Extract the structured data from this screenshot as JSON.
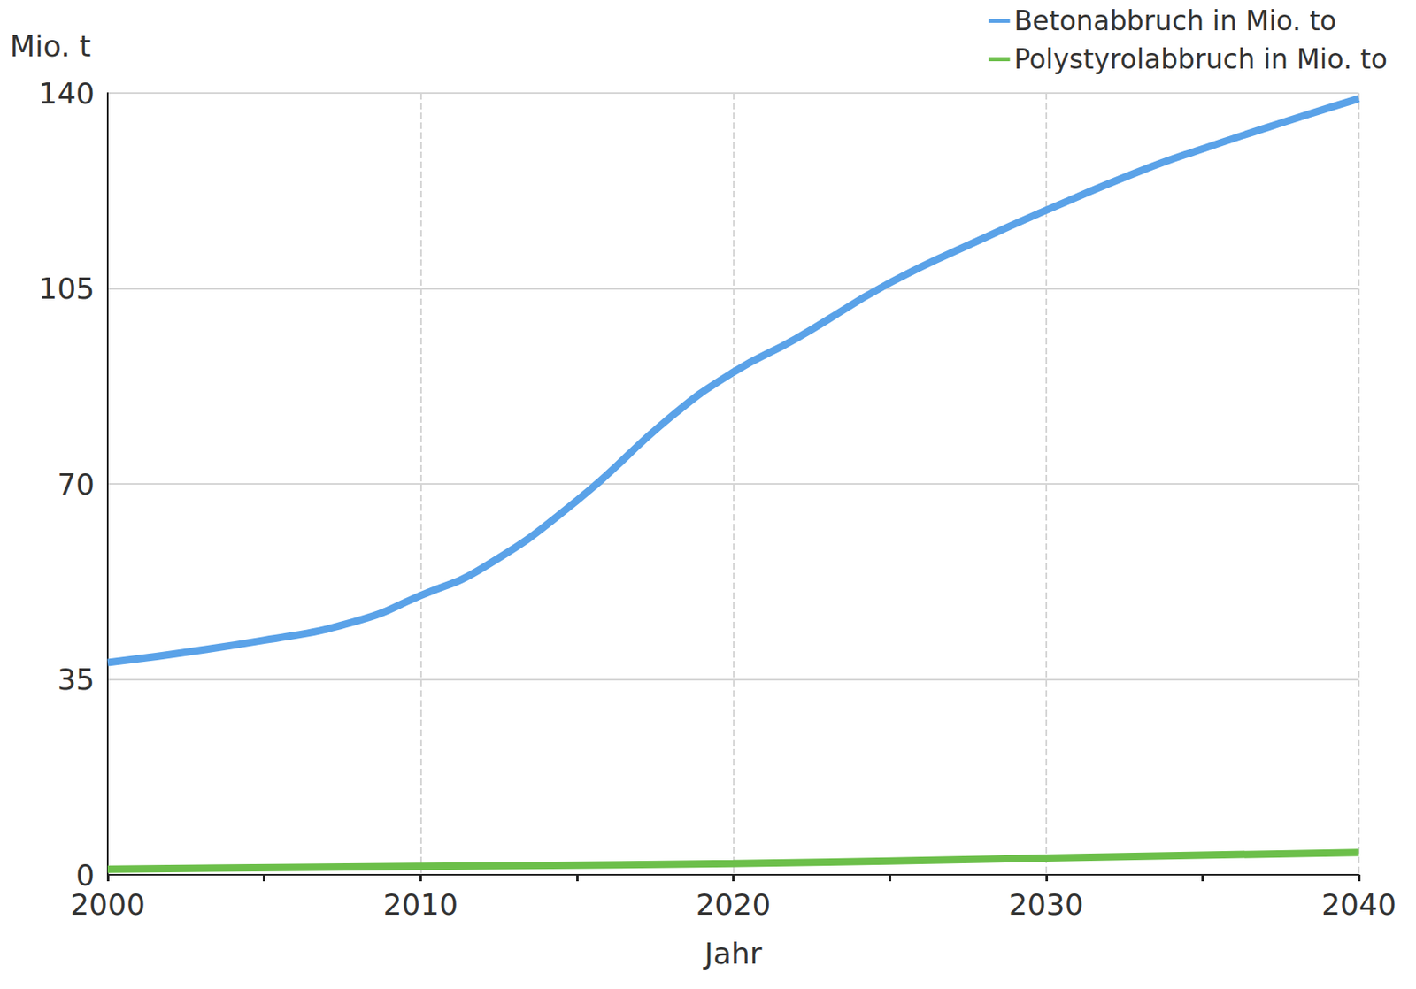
{
  "chart_data": {
    "type": "line",
    "x_label": "Jahr",
    "y_label": "Mio. t",
    "series": [
      {
        "name": "Betonabbruch in Mio. to",
        "color": "#5aa2e8",
        "x": [
          2000,
          2005,
          2008,
          2010,
          2012,
          2015,
          2018,
          2020,
          2022,
          2025,
          2028,
          2030,
          2033,
          2035,
          2038,
          2040
        ],
        "values": [
          38,
          42,
          45.5,
          50,
          55,
          67,
          82,
          90,
          96,
          106,
          114,
          119,
          126,
          130,
          135.5,
          139
        ]
      },
      {
        "name": "Polystyrolabbruch in Mio. to",
        "color": "#6cbf4a",
        "x": [
          2000,
          2010,
          2020,
          2030,
          2040
        ],
        "values": [
          1,
          1.5,
          2,
          3,
          4
        ]
      }
    ],
    "xlim": [
      2000,
      2040
    ],
    "xticks": [
      2000,
      2010,
      2020,
      2030,
      2040
    ],
    "ylim": [
      0,
      140
    ],
    "yticks": [
      0,
      35,
      70,
      105,
      140
    ],
    "grid": true,
    "legend": "top-right"
  }
}
